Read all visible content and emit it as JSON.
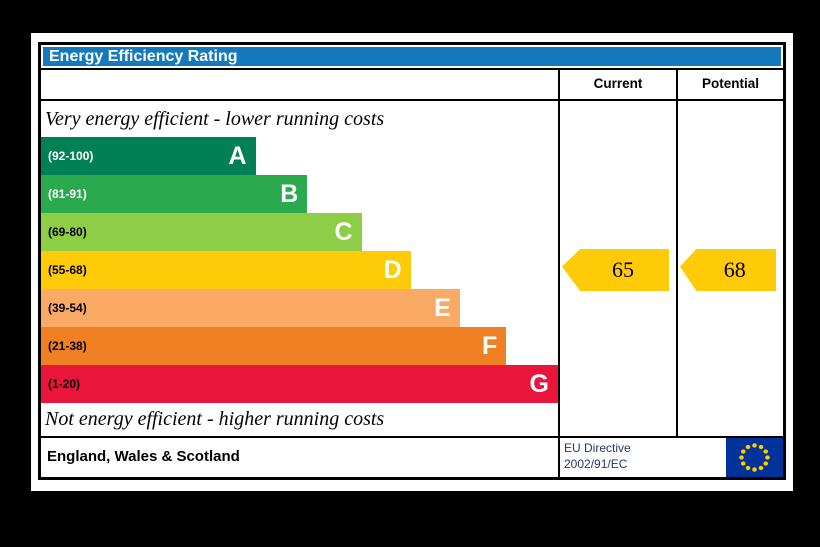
{
  "title": "Energy Efficiency Rating",
  "header": {
    "current": "Current",
    "potential": "Potential"
  },
  "notes": {
    "top": "Very energy efficient - lower running costs",
    "bottom": "Not energy efficient - higher running costs"
  },
  "bands": [
    {
      "letter": "A",
      "range": "(92-100)",
      "color": "#008054",
      "label_color": "#ffffff",
      "width_pct": 41.5
    },
    {
      "letter": "B",
      "range": "(81-91)",
      "color": "#2ba94f",
      "label_color": "#ffffff",
      "width_pct": 51.5
    },
    {
      "letter": "C",
      "range": "(69-80)",
      "color": "#8dce46",
      "label_color": "#000000",
      "width_pct": 62
    },
    {
      "letter": "D",
      "range": "(55-68)",
      "color": "#ffcb08",
      "label_color": "#000000",
      "width_pct": 71.5
    },
    {
      "letter": "E",
      "range": "(39-54)",
      "color": "#fbaa65",
      "label_color": "#000000",
      "width_pct": 81
    },
    {
      "letter": "F",
      "range": "(21-38)",
      "color": "#ef8023",
      "label_color": "#000000",
      "width_pct": 90
    },
    {
      "letter": "G",
      "range": "(1-20)",
      "color": "#e9153b",
      "label_color": "#000000",
      "width_pct": 100
    }
  ],
  "ratings": {
    "current": {
      "value": "65",
      "band": "D",
      "color": "#ffcb08"
    },
    "potential": {
      "value": "68",
      "band": "D",
      "color": "#ffcb08"
    }
  },
  "footer": {
    "region": "England, Wales & Scotland",
    "directive_line1": "EU Directive",
    "directive_line2": "2002/91/EC"
  },
  "colors": {
    "title_bg": "#1479bd",
    "flag_bg": "#003399",
    "flag_star": "#ffcc00"
  },
  "chart_data": {
    "type": "bar",
    "title": "Energy Efficiency Rating",
    "categories": [
      "A",
      "B",
      "C",
      "D",
      "E",
      "F",
      "G"
    ],
    "band_ranges": [
      "(92-100)",
      "(81-91)",
      "(69-80)",
      "(55-68)",
      "(39-54)",
      "(21-38)",
      "(1-20)"
    ],
    "band_colors": [
      "#008054",
      "#2ba94f",
      "#8dce46",
      "#ffcb08",
      "#fbaa65",
      "#ef8023",
      "#e9153b"
    ],
    "series": [
      {
        "name": "Current",
        "values": [
          65
        ]
      },
      {
        "name": "Potential",
        "values": [
          68
        ]
      }
    ],
    "current": 65,
    "potential": 68,
    "current_band": "D",
    "potential_band": "D",
    "xlim": [
      1,
      100
    ],
    "annotations": [
      "Very energy efficient - lower running costs",
      "Not energy efficient - higher running costs"
    ],
    "region": "England, Wales & Scotland",
    "directive": "EU Directive 2002/91/EC"
  }
}
